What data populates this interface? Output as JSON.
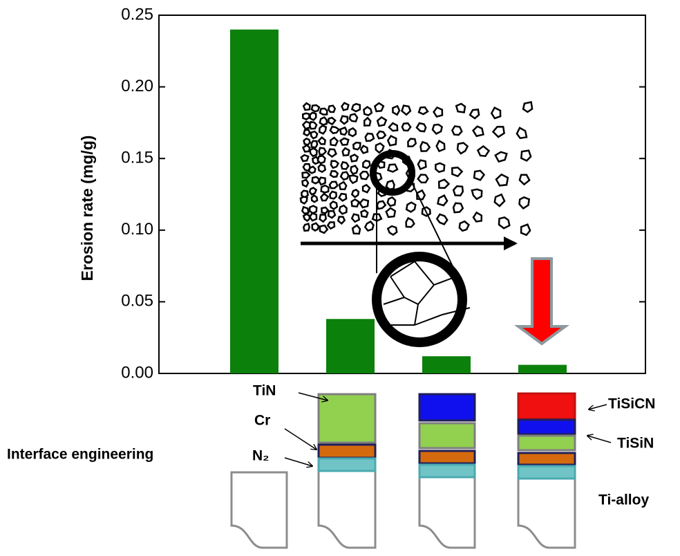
{
  "chart_data": {
    "type": "bar",
    "y_label": "Erosion rate (mg/g)",
    "categories": [
      null,
      null,
      null,
      null
    ],
    "values": [
      0.24,
      0.038,
      0.012,
      0.006
    ],
    "color": "#0b800b",
    "ylim": [
      0,
      0.25
    ],
    "yticks": [
      {
        "value": 0,
        "label": "0.00"
      },
      {
        "value": 0.05,
        "label": "0.05"
      },
      {
        "value": 0.1,
        "label": "0.10"
      },
      {
        "value": 0.15,
        "label": "0.15"
      },
      {
        "value": 0.2,
        "label": "0.20"
      },
      {
        "value": 0.25,
        "label": "0.25"
      }
    ]
  },
  "labels": {
    "tin": "TiN",
    "cr": "Cr",
    "n2": "N₂",
    "interface": "Interface engineering",
    "tisicn": "TiSiCN",
    "tisin": "TiSiN",
    "ti_alloy": "Ti-alloy"
  }
}
